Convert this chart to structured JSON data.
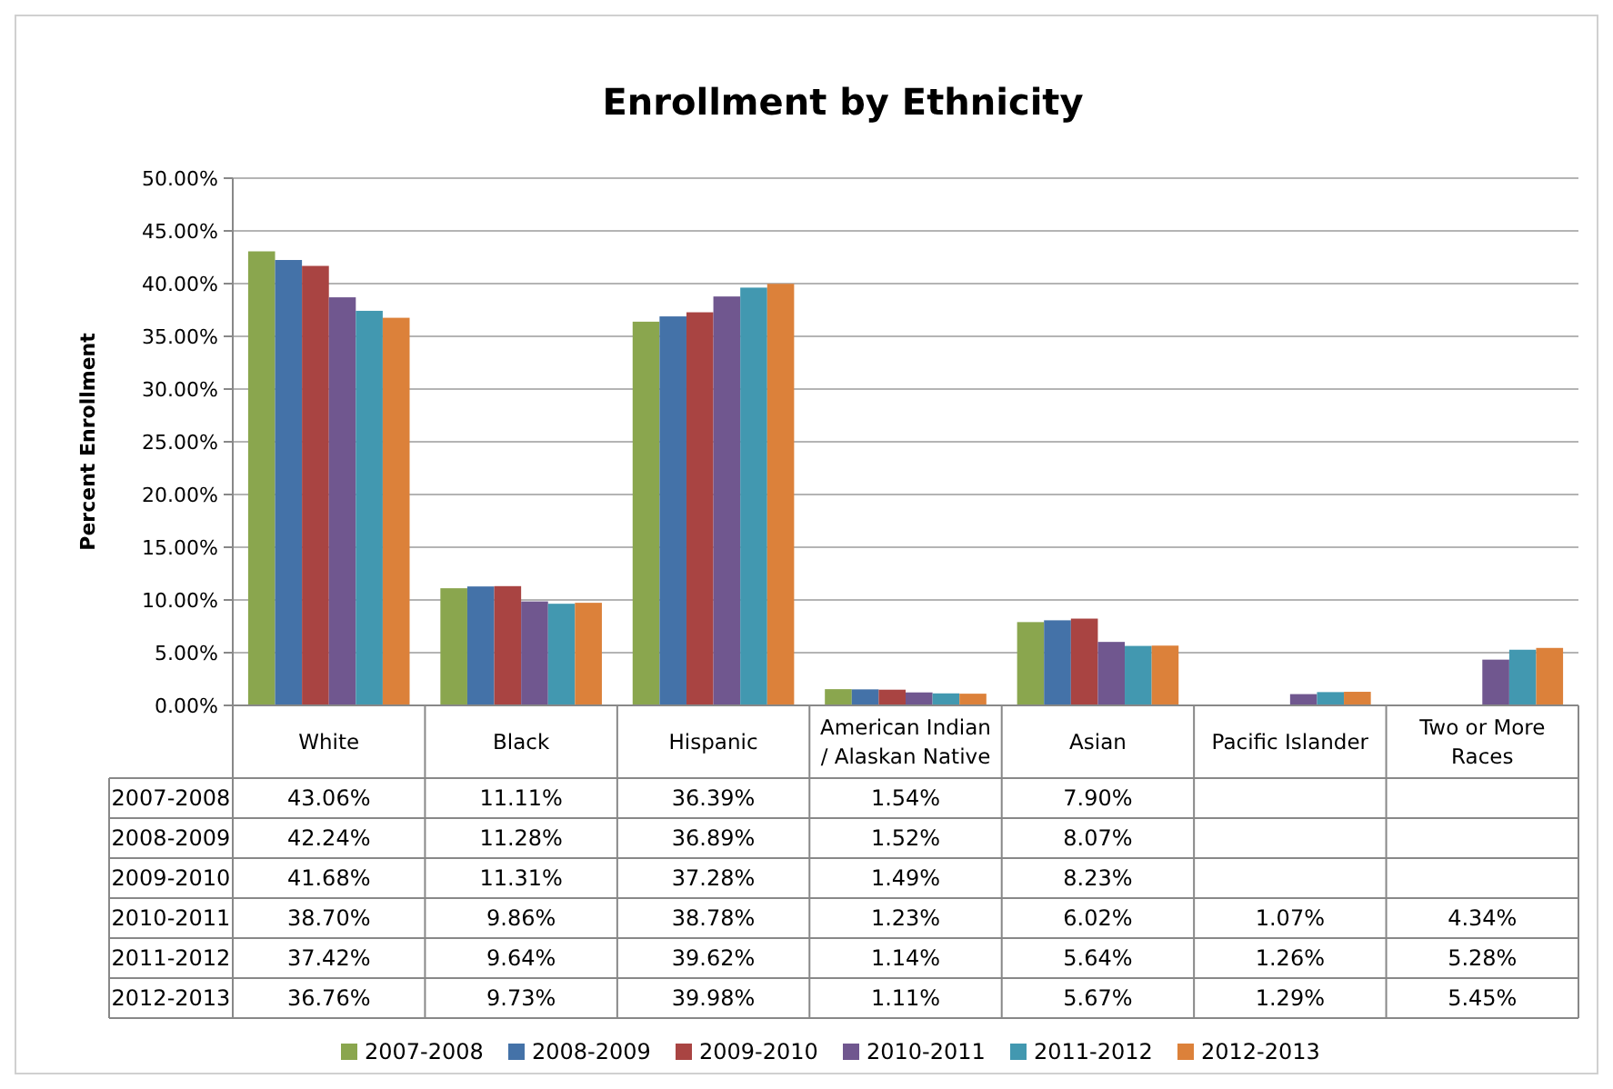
{
  "chart_data": {
    "type": "bar",
    "title": "Enrollment by Ethnicity",
    "ylabel": "Percent Enrollment",
    "categories": [
      "White",
      "Black",
      "Hispanic",
      "American Indian / Alaskan Native",
      "Asian",
      "Pacific Islander",
      "Two or More Races"
    ],
    "ylim": [
      0,
      50
    ],
    "yticks": [
      {
        "value": 0,
        "label": "0.00%"
      },
      {
        "value": 5,
        "label": "5.00%"
      },
      {
        "value": 10,
        "label": "10.00%"
      },
      {
        "value": 15,
        "label": "15.00%"
      },
      {
        "value": 20,
        "label": "20.00%"
      },
      {
        "value": 25,
        "label": "25.00%"
      },
      {
        "value": 30,
        "label": "30.00%"
      },
      {
        "value": 35,
        "label": "35.00%"
      },
      {
        "value": 40,
        "label": "40.00%"
      },
      {
        "value": 45,
        "label": "45.00%"
      },
      {
        "value": 50,
        "label": "50.00%"
      }
    ],
    "grid": "y",
    "legend": "bottom",
    "series": [
      {
        "name": "2007-2008",
        "color": "#8aa64e",
        "values": [
          43.06,
          11.11,
          36.39,
          1.54,
          7.9,
          null,
          null
        ],
        "value_labels": [
          "43.06%",
          "11.11%",
          "36.39%",
          "1.54%",
          "7.90%",
          null,
          null
        ]
      },
      {
        "name": "2008-2009",
        "color": "#4472a8",
        "values": [
          42.24,
          11.28,
          36.89,
          1.52,
          8.07,
          null,
          null
        ],
        "value_labels": [
          "42.24%",
          "11.28%",
          "36.89%",
          "1.52%",
          "8.07%",
          null,
          null
        ]
      },
      {
        "name": "2009-2010",
        "color": "#a94442",
        "values": [
          41.68,
          11.31,
          37.28,
          1.49,
          8.23,
          null,
          null
        ],
        "value_labels": [
          "41.68%",
          "11.31%",
          "37.28%",
          "1.49%",
          "8.23%",
          null,
          null
        ]
      },
      {
        "name": "2010-2011",
        "color": "#70578f",
        "values": [
          38.7,
          9.86,
          38.78,
          1.23,
          6.02,
          1.07,
          4.34
        ],
        "value_labels": [
          "38.70%",
          "9.86%",
          "38.78%",
          "1.23%",
          "6.02%",
          "1.07%",
          "4.34%"
        ]
      },
      {
        "name": "2011-2012",
        "color": "#4298b0",
        "values": [
          37.42,
          9.64,
          39.62,
          1.14,
          5.64,
          1.26,
          5.28
        ],
        "value_labels": [
          "37.42%",
          "9.64%",
          "39.62%",
          "1.14%",
          "5.64%",
          "1.26%",
          "5.28%"
        ]
      },
      {
        "name": "2012-2013",
        "color": "#dc813a",
        "values": [
          36.76,
          9.73,
          39.98,
          1.11,
          5.67,
          1.29,
          5.45
        ],
        "value_labels": [
          "36.76%",
          "9.73%",
          "39.98%",
          "1.11%",
          "5.67%",
          "1.29%",
          "5.45%"
        ]
      }
    ]
  }
}
